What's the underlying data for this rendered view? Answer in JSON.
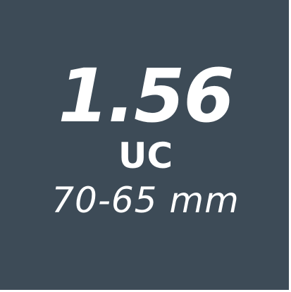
{
  "colors": {
    "background": "#3d4b57",
    "text": "#ffffff"
  },
  "lens": {
    "index": "1.56",
    "coating": "UC",
    "diameter_range": "70-65 mm"
  }
}
